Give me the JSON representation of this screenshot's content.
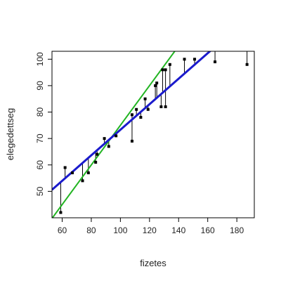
{
  "chart_data": {
    "type": "scatter",
    "title": "",
    "xlabel": "fizetes",
    "ylabel": "elegedettseg",
    "xlim": [
      53,
      192
    ],
    "ylim": [
      40,
      103
    ],
    "xticks": [
      "60",
      "80",
      "100",
      "120",
      "140",
      "160",
      "180"
    ],
    "yticks": [
      "50",
      "60",
      "70",
      "80",
      "90",
      "100"
    ],
    "grid": false,
    "legend": "none",
    "colors": {
      "points": "#000000",
      "residuals": "#000000",
      "fit_line": "#1a1acc",
      "diagonal_line": "#22b422",
      "frame": "#000000"
    },
    "points": [
      {
        "x": 59,
        "y": 42
      },
      {
        "x": 62,
        "y": 59
      },
      {
        "x": 67,
        "y": 57
      },
      {
        "x": 74,
        "y": 54
      },
      {
        "x": 78,
        "y": 57
      },
      {
        "x": 83,
        "y": 61
      },
      {
        "x": 84,
        "y": 64
      },
      {
        "x": 89,
        "y": 70
      },
      {
        "x": 92,
        "y": 67
      },
      {
        "x": 97,
        "y": 71
      },
      {
        "x": 108,
        "y": 69
      },
      {
        "x": 108,
        "y": 79
      },
      {
        "x": 111,
        "y": 81
      },
      {
        "x": 114,
        "y": 78
      },
      {
        "x": 117,
        "y": 85
      },
      {
        "x": 119,
        "y": 81
      },
      {
        "x": 124,
        "y": 90
      },
      {
        "x": 125,
        "y": 91
      },
      {
        "x": 128,
        "y": 82
      },
      {
        "x": 129,
        "y": 96
      },
      {
        "x": 131,
        "y": 82
      },
      {
        "x": 131,
        "y": 96
      },
      {
        "x": 134,
        "y": 98
      },
      {
        "x": 144,
        "y": 100
      },
      {
        "x": 151,
        "y": 100
      },
      {
        "x": 165,
        "y": 99
      },
      {
        "x": 187,
        "y": 98
      }
    ],
    "fit_line": {
      "intercept": 25.0,
      "slope": 0.483
    },
    "diagonal_line": {
      "intercept": 0.0,
      "slope": 0.75
    }
  }
}
